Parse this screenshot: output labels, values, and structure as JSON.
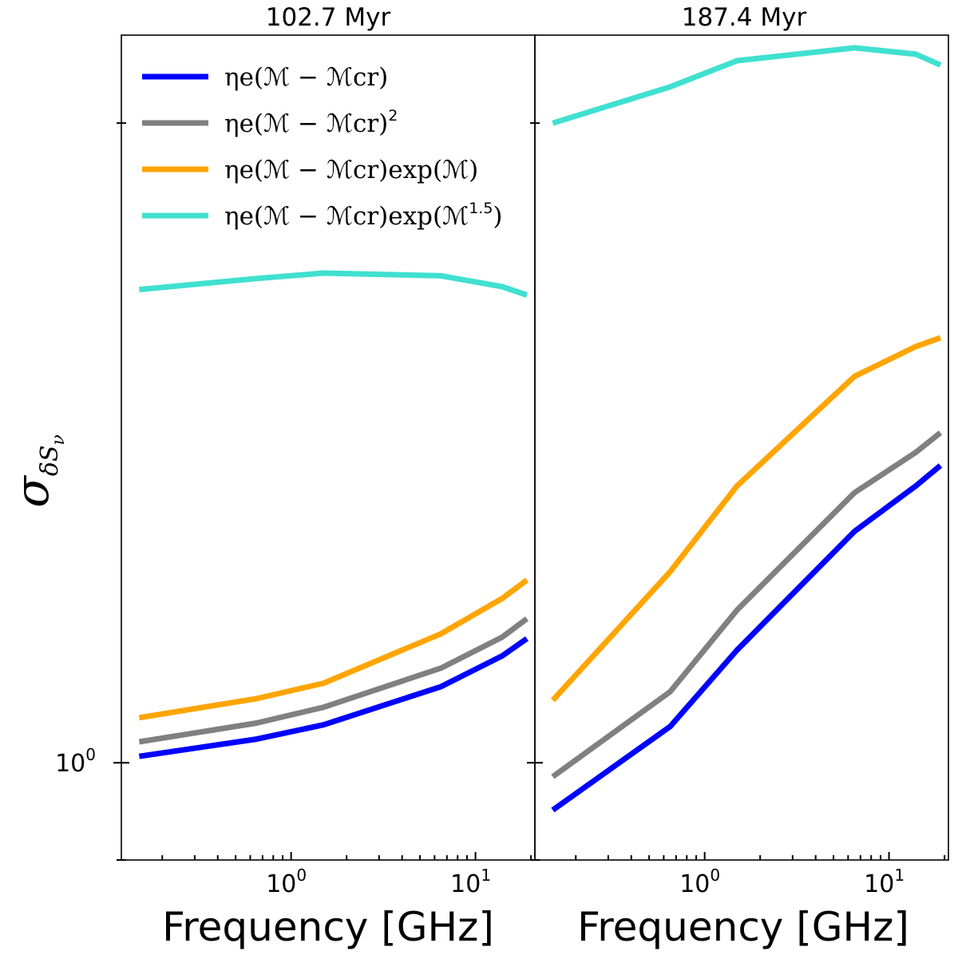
{
  "chart_data": [
    {
      "type": "line",
      "title": "102.7 Myr",
      "xlabel": "Frequency [GHz]",
      "ylabel": "σ",
      "ylabel_sub": "δS",
      "ylabel_subsub": "ν",
      "xscale": "log",
      "yscale": "log",
      "xlim": [
        0.12,
        21
      ],
      "ylim": [
        0.9,
        2.2
      ],
      "x_ticks": [
        {
          "base": "10",
          "exp": "0",
          "value": 1
        },
        {
          "base": "10",
          "exp": "1",
          "value": 10
        }
      ],
      "y_ticks": [
        {
          "base": "10",
          "exp": "0",
          "value": 1
        }
      ],
      "x": [
        0.15,
        0.65,
        1.5,
        6.5,
        14,
        19
      ],
      "series": [
        {
          "name": "ηe(M − Mcr)",
          "color": "#0000ff",
          "values": [
            1.007,
            1.026,
            1.042,
            1.086,
            1.123,
            1.144
          ]
        },
        {
          "name": "ηe(M − Mcr)²",
          "color": "#808080",
          "values": [
            1.023,
            1.044,
            1.062,
            1.108,
            1.146,
            1.169
          ]
        },
        {
          "name": "ηe(M − Mcr)exp(M)",
          "color": "#ffa500",
          "values": [
            1.05,
            1.072,
            1.09,
            1.15,
            1.195,
            1.219
          ]
        },
        {
          "name": "ηe(M − Mcr)exp(M^1.5)",
          "color": "#40e0d0",
          "values": [
            1.67,
            1.69,
            1.7,
            1.695,
            1.675,
            1.66
          ]
        }
      ]
    },
    {
      "type": "line",
      "title": "187.4 Myr",
      "xlabel": "Frequency [GHz]",
      "xscale": "log",
      "yscale": "log",
      "xlim": [
        0.12,
        21
      ],
      "ylim": [
        0.9,
        2.2
      ],
      "x_ticks": [
        {
          "base": "10",
          "exp": "0",
          "value": 1
        },
        {
          "base": "10",
          "exp": "1",
          "value": 10
        }
      ],
      "x": [
        0.15,
        0.65,
        1.5,
        6.5,
        14,
        19
      ],
      "series": [
        {
          "name": "ηe(M − Mcr)",
          "color": "#0000ff",
          "values": [
            0.95,
            1.04,
            1.13,
            1.285,
            1.35,
            1.38
          ]
        },
        {
          "name": "ηe(M − Mcr)²",
          "color": "#808080",
          "values": [
            0.985,
            1.08,
            1.18,
            1.34,
            1.4,
            1.43
          ]
        },
        {
          "name": "ηe(M − Mcr)exp(M)",
          "color": "#ffa500",
          "values": [
            1.07,
            1.23,
            1.35,
            1.52,
            1.57,
            1.585
          ]
        },
        {
          "name": "ηe(M − Mcr)exp(M^1.5)",
          "color": "#40e0d0",
          "values": [
            2.0,
            2.08,
            2.14,
            2.17,
            2.155,
            2.13
          ]
        }
      ]
    }
  ],
  "legend": {
    "entries": [
      {
        "prefix": "ηe(ℳ − ℳcr)",
        "suffix": "",
        "sup": "",
        "color": "#0000ff"
      },
      {
        "prefix": "ηe(ℳ − ℳcr)",
        "suffix": "",
        "sup": "2",
        "color": "#808080"
      },
      {
        "prefix": "ηe(ℳ − ℳcr)exp(ℳ)",
        "suffix": "",
        "sup": "",
        "color": "#ffa500"
      },
      {
        "prefix": "ηe(ℳ − ℳcr)exp(ℳ",
        "suffix": ")",
        "sup": "1.5",
        "color": "#40e0d0"
      }
    ]
  }
}
